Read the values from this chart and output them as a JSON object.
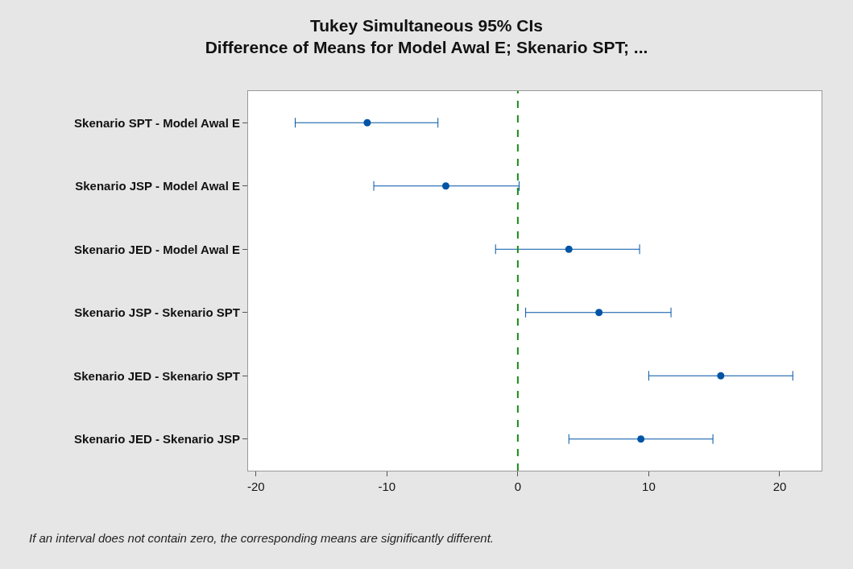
{
  "chart_data": {
    "type": "scatter",
    "orientation": "horizontal",
    "title": "Tukey Simultaneous 95% CIs",
    "subtitle": "Difference of Means for Model Awal E; Skenario SPT; ...",
    "categories": [
      "Skenario SPT - Model Awal E",
      "Skenario JSP - Model Awal E",
      "Skenario JED - Model Awal E",
      "Skenario JSP - Skenario SPT",
      "Skenario JED - Skenario SPT",
      "Skenario JED - Skenario JSP"
    ],
    "series": [
      {
        "color": "#0054a6",
        "values": [
          -11.5,
          -5.5,
          3.9,
          6.2,
          15.5,
          9.4
        ],
        "errors": [
          [
            -17.0,
            -6.1
          ],
          [
            -11.0,
            0.1
          ],
          [
            -1.7,
            9.3
          ],
          [
            0.6,
            11.7
          ],
          [
            10.0,
            21.0
          ],
          [
            3.9,
            14.9
          ]
        ]
      }
    ],
    "xlim": [
      -20.6,
      23.2
    ],
    "xticks": [
      -20,
      -10,
      0,
      10,
      20
    ],
    "ref_lines": [
      {
        "axis": "x",
        "value": 0,
        "color": "#1a8a1a",
        "line_style": "dashed"
      }
    ],
    "annotations": [
      "If an interval does not contain zero, the corresponding means are significantly different."
    ],
    "marker": "circle"
  }
}
